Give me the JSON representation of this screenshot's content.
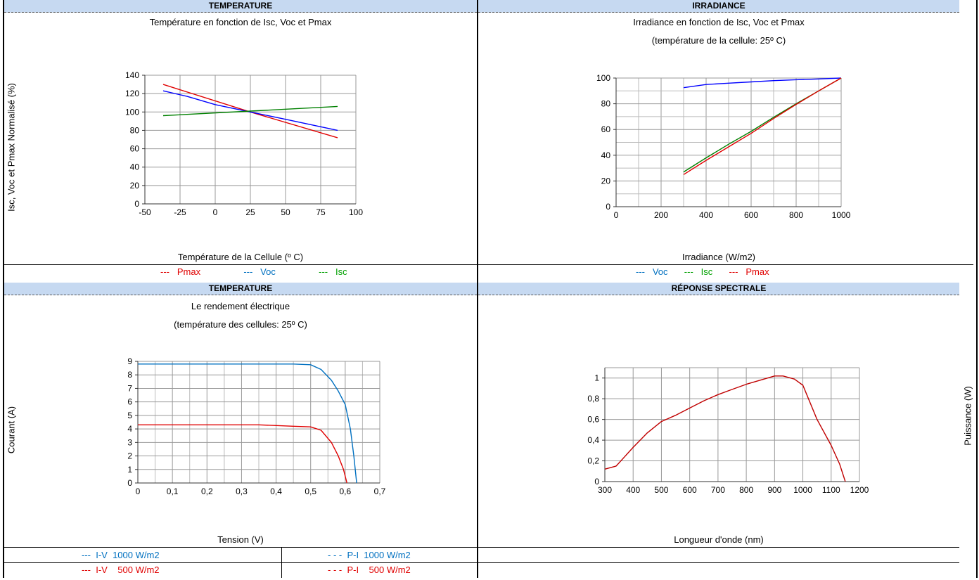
{
  "panels": {
    "top_left_header": "TEMPERATURE",
    "top_right_header": "IRRADIANCE",
    "bottom_left_header": "TEMPERATURE",
    "bottom_right_header": "RÉPONSE SPECTRALE"
  },
  "side_labels": {
    "top_left_y": "Isc, Voc et Pmax Normalisé (%)",
    "bottom_left_y": "Courant (A)",
    "bottom_right_y": "Puissance (W)"
  },
  "legends": {
    "top_left": [
      {
        "dash": "---",
        "label": "Pmax",
        "color": "#e00000"
      },
      {
        "dash": "---",
        "label": "Voc",
        "color": "#0070c0"
      },
      {
        "dash": "---",
        "label": "Isc",
        "color": "#00a000"
      }
    ],
    "top_right": [
      {
        "dash": "---",
        "label": "Voc",
        "color": "#0070c0"
      },
      {
        "dash": "---",
        "label": "Isc",
        "color": "#00a000"
      },
      {
        "dash": "---",
        "label": "Pmax",
        "color": "#e00000"
      }
    ],
    "bottom_left": [
      {
        "dash": "---",
        "label": "I-V  1000 W/m2",
        "color": "#0070c0"
      },
      {
        "dash": "- - -",
        "label": "P-I  1000 W/m2",
        "color": "#0070c0"
      },
      {
        "dash": "---",
        "label": "I-V    500 W/m2",
        "color": "#e00000"
      },
      {
        "dash": "- - -",
        "label": "P-I    500 W/m2",
        "color": "#e00000"
      }
    ]
  },
  "chart_data": [
    {
      "type": "line",
      "title": "Température en fonction de Isc, Voc et Pmax",
      "xlabel": "Température de la Cellule (º C)",
      "ylabel": "Isc, Voc et Pmax Normalisé (%)",
      "xlim": [
        -50,
        100
      ],
      "ylim": [
        0,
        140
      ],
      "xticks": [
        -50,
        -25,
        0,
        25,
        50,
        75,
        100
      ],
      "yticks": [
        0,
        20,
        40,
        60,
        80,
        100,
        120,
        140
      ],
      "grid": true,
      "series": [
        {
          "name": "Pmax",
          "color": "#e00000",
          "points": [
            [
              -37,
              130
            ],
            [
              25,
              100
            ],
            [
              87,
              72
            ]
          ]
        },
        {
          "name": "Voc",
          "color": "#0000ff",
          "points": [
            [
              -37,
              123
            ],
            [
              -20,
              117
            ],
            [
              0,
              108
            ],
            [
              25,
              100
            ],
            [
              50,
              92
            ],
            [
              87,
              80
            ]
          ]
        },
        {
          "name": "Isc",
          "color": "#008000",
          "points": [
            [
              -37,
              96
            ],
            [
              25,
              101
            ],
            [
              87,
              106
            ]
          ]
        }
      ]
    },
    {
      "type": "line",
      "title": "Irradiance en fonction de Isc, Voc et Pmax",
      "subtitle": "(température de la cellule: 25º C)",
      "xlabel": "Irradiance (W/m2)",
      "xlim": [
        0,
        1000
      ],
      "ylim": [
        0,
        100
      ],
      "xticks": [
        0,
        200,
        400,
        600,
        800,
        1000
      ],
      "yticks": [
        0,
        20,
        40,
        60,
        80,
        100
      ],
      "grid": true,
      "series": [
        {
          "name": "Voc",
          "color": "#0000ff",
          "points": [
            [
              300,
              92.5
            ],
            [
              400,
              95
            ],
            [
              500,
              96
            ],
            [
              600,
              97
            ],
            [
              700,
              98
            ],
            [
              800,
              98.7
            ],
            [
              900,
              99.3
            ],
            [
              1000,
              100
            ]
          ]
        },
        {
          "name": "Isc",
          "color": "#008000",
          "points": [
            [
              300,
              27
            ],
            [
              400,
              38
            ],
            [
              500,
              48.5
            ],
            [
              600,
              58.5
            ],
            [
              700,
              69.5
            ],
            [
              800,
              80
            ],
            [
              900,
              90
            ],
            [
              1000,
              100
            ]
          ]
        },
        {
          "name": "Pmax",
          "color": "#e00000",
          "points": [
            [
              300,
              25
            ],
            [
              400,
              36
            ],
            [
              500,
              46.5
            ],
            [
              600,
              57
            ],
            [
              700,
              68.5
            ],
            [
              800,
              79.5
            ],
            [
              900,
              90
            ],
            [
              1000,
              100
            ]
          ]
        }
      ]
    },
    {
      "type": "line",
      "title": "Le rendement électrique",
      "subtitle": "(température des cellules: 25º C)",
      "xlabel": "Tension (V)",
      "ylabel": "Courant (A)",
      "xlim": [
        0,
        0.7
      ],
      "ylim": [
        0,
        9
      ],
      "xticks": [
        0,
        0.1,
        0.2,
        0.3,
        0.4,
        0.5,
        0.6,
        0.7
      ],
      "xtick_labels": [
        "0",
        "0,1",
        "0,2",
        "0,3",
        "0,4",
        "0,5",
        "0,6",
        "0,7"
      ],
      "yticks": [
        0,
        1,
        2,
        3,
        4,
        5,
        6,
        7,
        8,
        9
      ],
      "grid": true,
      "series": [
        {
          "name": "I-V 1000 W/m2",
          "color": "#0070c0",
          "points": [
            [
              0,
              8.8
            ],
            [
              0.35,
              8.8
            ],
            [
              0.45,
              8.8
            ],
            [
              0.5,
              8.75
            ],
            [
              0.53,
              8.4
            ],
            [
              0.56,
              7.6
            ],
            [
              0.58,
              6.8
            ],
            [
              0.6,
              5.8
            ],
            [
              0.615,
              4
            ],
            [
              0.625,
              2
            ],
            [
              0.633,
              0
            ]
          ]
        },
        {
          "name": "I-V 500 W/m2",
          "color": "#e00000",
          "points": [
            [
              0,
              4.3
            ],
            [
              0.35,
              4.3
            ],
            [
              0.45,
              4.2
            ],
            [
              0.5,
              4.15
            ],
            [
              0.53,
              3.9
            ],
            [
              0.56,
              3
            ],
            [
              0.58,
              2
            ],
            [
              0.595,
              1
            ],
            [
              0.605,
              0
            ]
          ]
        }
      ]
    },
    {
      "type": "line",
      "title": "",
      "xlabel": "Longueur d'onde (nm)",
      "ylabel": "Puissance (W)",
      "xlim": [
        300,
        1200
      ],
      "ylim": [
        0,
        1.1
      ],
      "xticks": [
        300,
        400,
        500,
        600,
        700,
        800,
        900,
        1000,
        1100,
        1200
      ],
      "yticks": [
        0,
        0.2,
        0.4,
        0.6,
        0.8,
        1
      ],
      "ytick_labels": [
        "0",
        "0,2",
        "0,4",
        "0,6",
        "0,8",
        "1"
      ],
      "grid": true,
      "series": [
        {
          "name": "",
          "color": "#c00000",
          "points": [
            [
              300,
              0.12
            ],
            [
              340,
              0.15
            ],
            [
              400,
              0.33
            ],
            [
              450,
              0.47
            ],
            [
              500,
              0.58
            ],
            [
              550,
              0.64
            ],
            [
              600,
              0.71
            ],
            [
              650,
              0.78
            ],
            [
              700,
              0.84
            ],
            [
              750,
              0.89
            ],
            [
              800,
              0.94
            ],
            [
              850,
              0.98
            ],
            [
              900,
              1.02
            ],
            [
              930,
              1.02
            ],
            [
              970,
              0.99
            ],
            [
              1000,
              0.93
            ],
            [
              1050,
              0.6
            ],
            [
              1100,
              0.35
            ],
            [
              1130,
              0.17
            ],
            [
              1150,
              0
            ]
          ]
        }
      ]
    }
  ]
}
